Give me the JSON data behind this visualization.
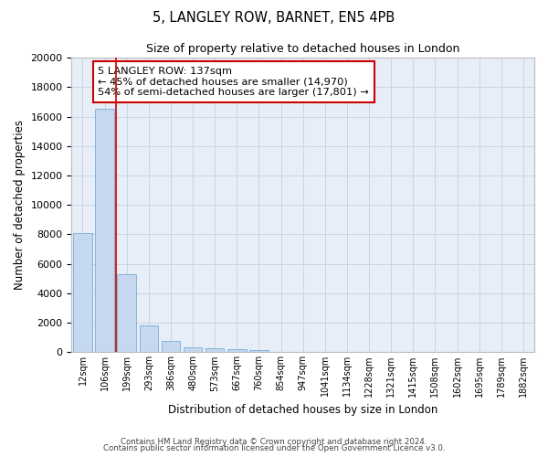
{
  "title1": "5, LANGLEY ROW, BARNET, EN5 4PB",
  "title2": "Size of property relative to detached houses in London",
  "xlabel": "Distribution of detached houses by size in London",
  "ylabel": "Number of detached properties",
  "categories": [
    "12sqm",
    "106sqm",
    "199sqm",
    "293sqm",
    "386sqm",
    "480sqm",
    "573sqm",
    "667sqm",
    "760sqm",
    "854sqm",
    "947sqm",
    "1041sqm",
    "1134sqm",
    "1228sqm",
    "1321sqm",
    "1415sqm",
    "1508sqm",
    "1602sqm",
    "1695sqm",
    "1789sqm",
    "1882sqm"
  ],
  "values": [
    8100,
    16500,
    5300,
    1850,
    750,
    360,
    280,
    220,
    175,
    0,
    0,
    0,
    0,
    0,
    0,
    0,
    0,
    0,
    0,
    0,
    0
  ],
  "bar_color": "#c5d8f0",
  "bar_edge_color": "#7bacd4",
  "vline_x": 1.5,
  "vline_color": "#cc0000",
  "annotation_text": "5 LANGLEY ROW: 137sqm\n← 45% of detached houses are smaller (14,970)\n54% of semi-detached houses are larger (17,801) →",
  "annotation_box_color": "#ffffff",
  "annotation_box_edge": "#cc0000",
  "ylim": [
    0,
    20000
  ],
  "yticks": [
    0,
    2000,
    4000,
    6000,
    8000,
    10000,
    12000,
    14000,
    16000,
    18000,
    20000
  ],
  "grid_color": "#c8d4e8",
  "bg_color": "#e8eef8",
  "footer1": "Contains HM Land Registry data © Crown copyright and database right 2024.",
  "footer2": "Contains public sector information licensed under the Open Government Licence v3.0."
}
